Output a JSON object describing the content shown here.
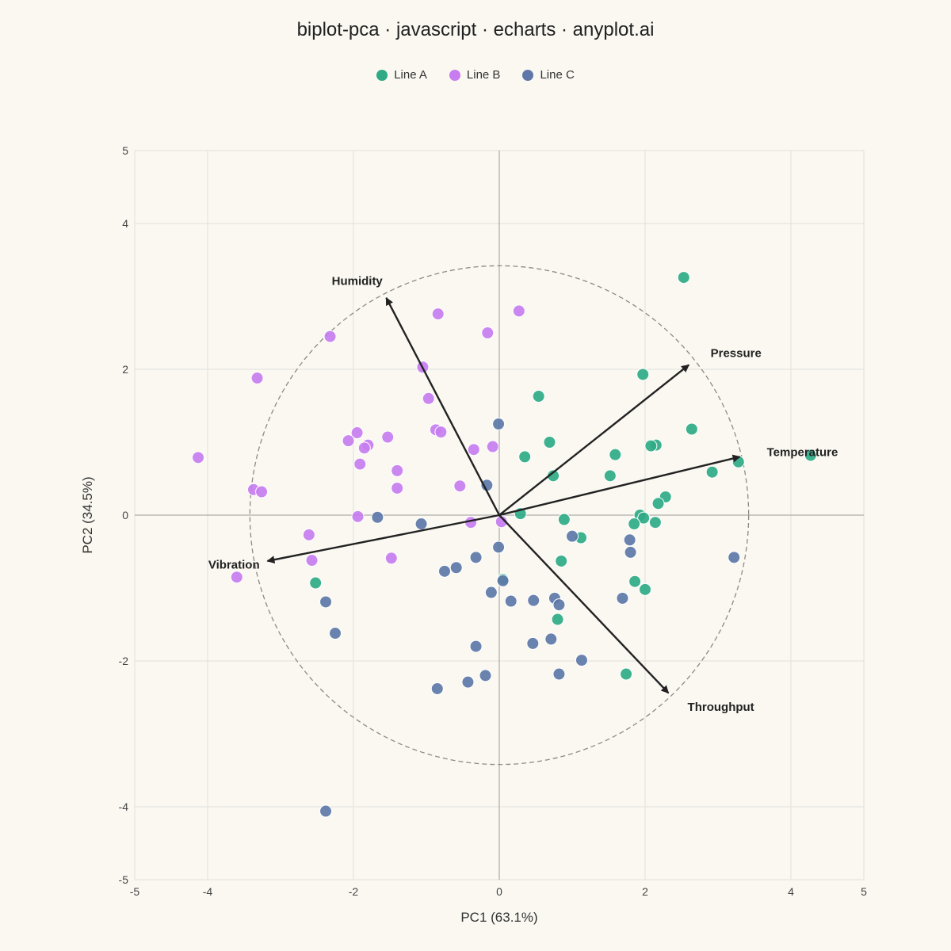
{
  "chart_data": {
    "type": "scatter",
    "title": "biplot-pca · javascript · echarts · anyplot.ai",
    "xlabel": "PC1 (63.1%)",
    "ylabel": "PC2 (34.5%)",
    "xlim": [
      -5,
      5
    ],
    "ylim": [
      -5,
      5
    ],
    "xticks": [
      -5,
      -4,
      -2,
      0,
      2,
      4,
      5
    ],
    "yticks": [
      -5,
      -4,
      -2,
      0,
      2,
      4,
      5
    ],
    "grid": true,
    "legend_position": "top",
    "correlation_circle_radius": 3.42,
    "series": [
      {
        "name": "Line A",
        "color": "#2EAA85",
        "points": [
          [
            2.53,
            3.26
          ],
          [
            1.97,
            1.93
          ],
          [
            0.54,
            1.63
          ],
          [
            2.64,
            1.18
          ],
          [
            2.15,
            0.96
          ],
          [
            2.08,
            0.95
          ],
          [
            0.69,
            1.0
          ],
          [
            1.59,
            0.83
          ],
          [
            0.35,
            0.8
          ],
          [
            2.92,
            0.59
          ],
          [
            3.28,
            0.73
          ],
          [
            4.27,
            0.82
          ],
          [
            0.74,
            0.54
          ],
          [
            1.52,
            0.54
          ],
          [
            2.28,
            0.25
          ],
          [
            2.18,
            0.16
          ],
          [
            1.93,
            0.0
          ],
          [
            1.98,
            -0.04
          ],
          [
            1.85,
            -0.12
          ],
          [
            2.14,
            -0.1
          ],
          [
            0.29,
            0.02
          ],
          [
            0.89,
            -0.06
          ],
          [
            1.12,
            -0.31
          ],
          [
            0.85,
            -0.63
          ],
          [
            0.05,
            -0.88
          ],
          [
            1.86,
            -0.91
          ],
          [
            2.0,
            -1.02
          ],
          [
            0.8,
            -1.43
          ],
          [
            1.74,
            -2.18
          ],
          [
            -2.52,
            -0.93
          ]
        ]
      },
      {
        "name": "Line B",
        "color": "#C77DF0",
        "points": [
          [
            0.27,
            2.8
          ],
          [
            -0.84,
            2.76
          ],
          [
            -0.16,
            2.5
          ],
          [
            -2.32,
            2.45
          ],
          [
            -3.32,
            1.88
          ],
          [
            -1.05,
            2.03
          ],
          [
            -0.97,
            1.6
          ],
          [
            -0.87,
            1.17
          ],
          [
            -0.8,
            1.14
          ],
          [
            -1.95,
            1.13
          ],
          [
            -2.07,
            1.02
          ],
          [
            -1.8,
            0.96
          ],
          [
            -1.85,
            0.92
          ],
          [
            -1.53,
            1.07
          ],
          [
            -0.35,
            0.9
          ],
          [
            -0.09,
            0.94
          ],
          [
            -1.91,
            0.7
          ],
          [
            -4.13,
            0.79
          ],
          [
            -1.4,
            0.61
          ],
          [
            -3.37,
            0.35
          ],
          [
            -3.26,
            0.32
          ],
          [
            -1.4,
            0.37
          ],
          [
            -0.54,
            0.4
          ],
          [
            -1.94,
            -0.02
          ],
          [
            -0.39,
            -0.1
          ],
          [
            0.03,
            -0.09
          ],
          [
            -2.61,
            -0.27
          ],
          [
            -2.57,
            -0.62
          ],
          [
            -1.48,
            -0.59
          ],
          [
            -3.6,
            -0.85
          ]
        ]
      },
      {
        "name": "Line C",
        "color": "#5D78A8",
        "points": [
          [
            -0.01,
            1.25
          ],
          [
            -0.17,
            0.41
          ],
          [
            -1.67,
            -0.03
          ],
          [
            -1.07,
            -0.12
          ],
          [
            -0.01,
            -0.44
          ],
          [
            -0.32,
            -0.58
          ],
          [
            -0.59,
            -0.72
          ],
          [
            -0.75,
            -0.77
          ],
          [
            0.05,
            -0.9
          ],
          [
            -0.11,
            -1.06
          ],
          [
            0.16,
            -1.18
          ],
          [
            0.47,
            -1.17
          ],
          [
            0.76,
            -1.14
          ],
          [
            0.82,
            -1.23
          ],
          [
            1.0,
            -0.29
          ],
          [
            1.79,
            -0.34
          ],
          [
            1.8,
            -0.51
          ],
          [
            3.22,
            -0.58
          ],
          [
            1.69,
            -1.14
          ],
          [
            -2.38,
            -1.19
          ],
          [
            -2.25,
            -1.62
          ],
          [
            -0.32,
            -1.8
          ],
          [
            0.46,
            -1.76
          ],
          [
            0.71,
            -1.7
          ],
          [
            1.13,
            -1.99
          ],
          [
            0.82,
            -2.18
          ],
          [
            -0.19,
            -2.2
          ],
          [
            -0.43,
            -2.29
          ],
          [
            -0.85,
            -2.38
          ],
          [
            -2.38,
            -4.06
          ]
        ]
      }
    ],
    "loadings": [
      {
        "label": "Temperature",
        "x": 3.3,
        "y": 0.8
      },
      {
        "label": "Pressure",
        "x": 2.6,
        "y": 2.06
      },
      {
        "label": "Humidity",
        "x": -1.55,
        "y": 2.98
      },
      {
        "label": "Vibration",
        "x": -3.18,
        "y": -0.63
      },
      {
        "label": "Throughput",
        "x": 2.32,
        "y": -2.44
      }
    ]
  }
}
